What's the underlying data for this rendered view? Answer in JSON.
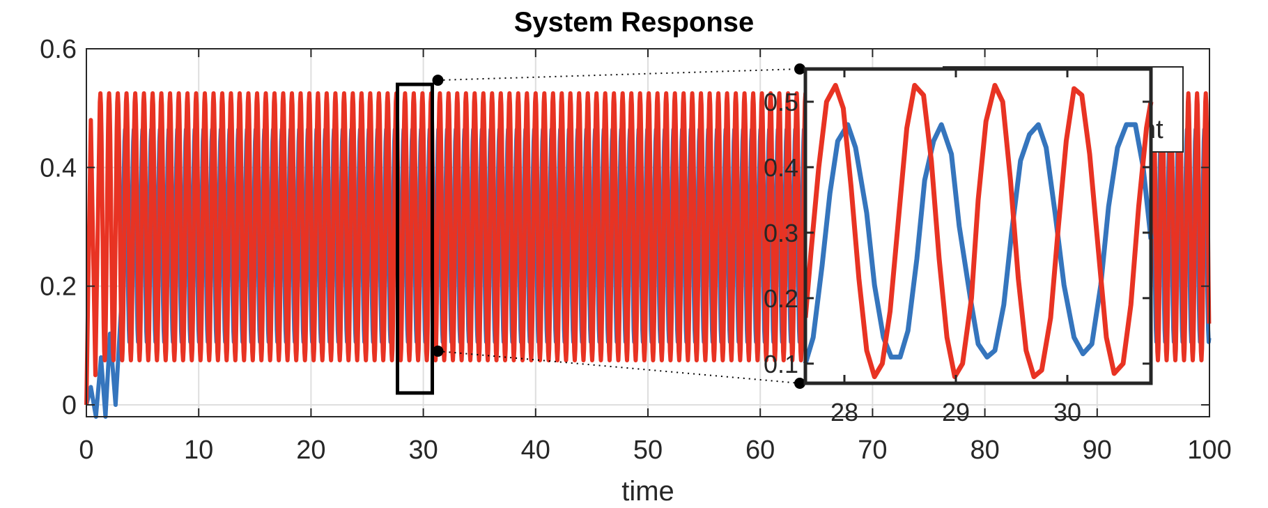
{
  "chart_data": [
    {
      "type": "line",
      "title": "System Response",
      "xlabel": "time",
      "ylabel": "",
      "xlim": [
        0,
        100
      ],
      "ylim": [
        -0.02,
        0.6
      ],
      "xticks": [
        0,
        10,
        20,
        30,
        40,
        50,
        60,
        70,
        80,
        90,
        100
      ],
      "xtick_labels": [
        "0",
        "10",
        "20",
        "30",
        "40",
        "50",
        "60",
        "70",
        "80",
        "90",
        "100"
      ],
      "yticks": [
        0,
        0.2,
        0.4,
        0.6
      ],
      "ytick_labels": [
        "0",
        "0.2",
        "0.4",
        "0.6"
      ],
      "grid": true,
      "legend_visible_text": "nt",
      "legend_placement": "top-right (mostly hidden behind inset)",
      "series": [
        {
          "color": "#3575bd",
          "steady_min": 0.105,
          "steady_max": 0.465,
          "period": 0.775,
          "start_transient": [
            [
              0,
              0
            ],
            [
              0.4,
              0.03
            ],
            [
              0.85,
              -0.02
            ],
            [
              1.3,
              0.08
            ],
            [
              1.7,
              -0.02
            ],
            [
              2.1,
              0.12
            ],
            [
              2.6,
              0.0
            ],
            [
              3.2,
              0.2
            ]
          ]
        },
        {
          "color": "#e83323",
          "steady_min": 0.075,
          "steady_max": 0.525,
          "period": 0.775,
          "start_transient": [
            [
              0,
              0
            ],
            [
              0.4,
              0.48
            ],
            [
              0.8,
              0.05
            ],
            [
              1.2,
              0.51
            ]
          ]
        }
      ],
      "zoom_box": {
        "x_range": [
          27.7,
          30.8
        ],
        "y_range": [
          0.02,
          0.54
        ]
      }
    },
    {
      "type": "line",
      "inset": true,
      "xlim": [
        27.65,
        30.75
      ],
      "ylim": [
        0.07,
        0.55
      ],
      "xticks": [
        28,
        29,
        30
      ],
      "xtick_labels": [
        "28",
        "29",
        "30"
      ],
      "yticks": [
        0.1,
        0.2,
        0.3,
        0.4,
        0.5
      ],
      "ytick_labels": [
        "0.1",
        "0.2",
        "0.3",
        "0.4",
        "0.5"
      ],
      "series": [
        {
          "color": "#3575bd",
          "x": [
            27.65,
            27.72,
            27.8,
            27.87,
            27.94,
            28.03,
            28.1,
            28.2,
            28.27,
            28.35,
            28.42,
            28.5,
            28.57,
            28.65,
            28.72,
            28.8,
            28.87,
            28.96,
            29.03,
            29.13,
            29.2,
            29.28,
            29.35,
            29.43,
            29.5,
            29.58,
            29.66,
            29.74,
            29.81,
            29.89,
            29.97,
            30.06,
            30.14,
            30.22,
            30.3,
            30.37,
            30.45,
            30.53,
            30.61,
            30.68,
            30.75
          ],
          "y": [
            0.1,
            0.14,
            0.25,
            0.36,
            0.44,
            0.465,
            0.43,
            0.33,
            0.22,
            0.14,
            0.11,
            0.11,
            0.15,
            0.26,
            0.38,
            0.44,
            0.465,
            0.42,
            0.31,
            0.2,
            0.13,
            0.11,
            0.12,
            0.19,
            0.3,
            0.41,
            0.45,
            0.465,
            0.43,
            0.33,
            0.22,
            0.14,
            0.115,
            0.13,
            0.22,
            0.34,
            0.43,
            0.465,
            0.465,
            0.4,
            0.29
          ]
        },
        {
          "color": "#e83323",
          "x": [
            27.65,
            27.7,
            27.77,
            27.84,
            27.92,
            27.99,
            28.06,
            28.13,
            28.2,
            28.27,
            28.34,
            28.41,
            28.49,
            28.56,
            28.63,
            28.71,
            28.78,
            28.85,
            28.92,
            28.99,
            29.06,
            29.14,
            29.2,
            29.27,
            29.35,
            29.42,
            29.49,
            29.56,
            29.63,
            29.7,
            29.77,
            29.85,
            29.92,
            29.99,
            30.06,
            30.13,
            30.2,
            30.28,
            30.35,
            30.42,
            30.5,
            30.57,
            30.64,
            30.71,
            30.75
          ],
          "y": [
            0.17,
            0.27,
            0.4,
            0.5,
            0.525,
            0.49,
            0.37,
            0.23,
            0.12,
            0.08,
            0.1,
            0.18,
            0.33,
            0.46,
            0.525,
            0.51,
            0.41,
            0.26,
            0.14,
            0.08,
            0.1,
            0.2,
            0.35,
            0.47,
            0.525,
            0.5,
            0.38,
            0.23,
            0.12,
            0.08,
            0.09,
            0.17,
            0.31,
            0.44,
            0.52,
            0.51,
            0.42,
            0.27,
            0.14,
            0.085,
            0.1,
            0.19,
            0.34,
            0.46,
            0.5
          ]
        }
      ]
    }
  ]
}
